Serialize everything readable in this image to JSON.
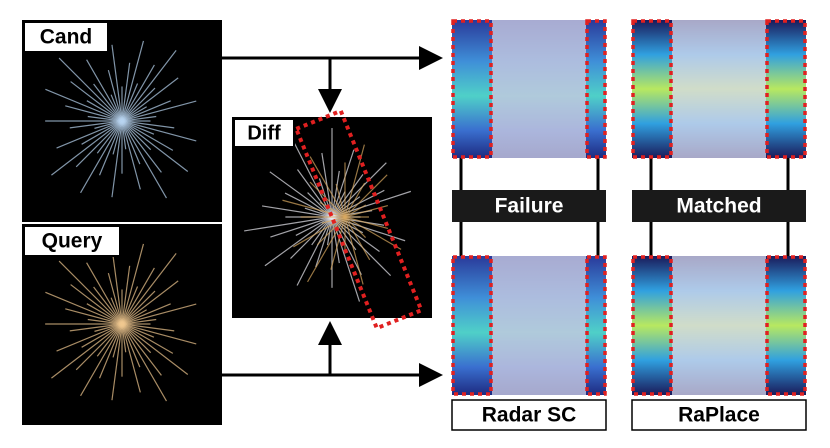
{
  "panels": {
    "cand": "Cand",
    "query": "Query",
    "diff": "Diff"
  },
  "status": {
    "radar_sc": "Failure",
    "raplace": "Matched"
  },
  "methods": {
    "radar_sc": "Radar SC",
    "raplace": "RaPlace"
  }
}
